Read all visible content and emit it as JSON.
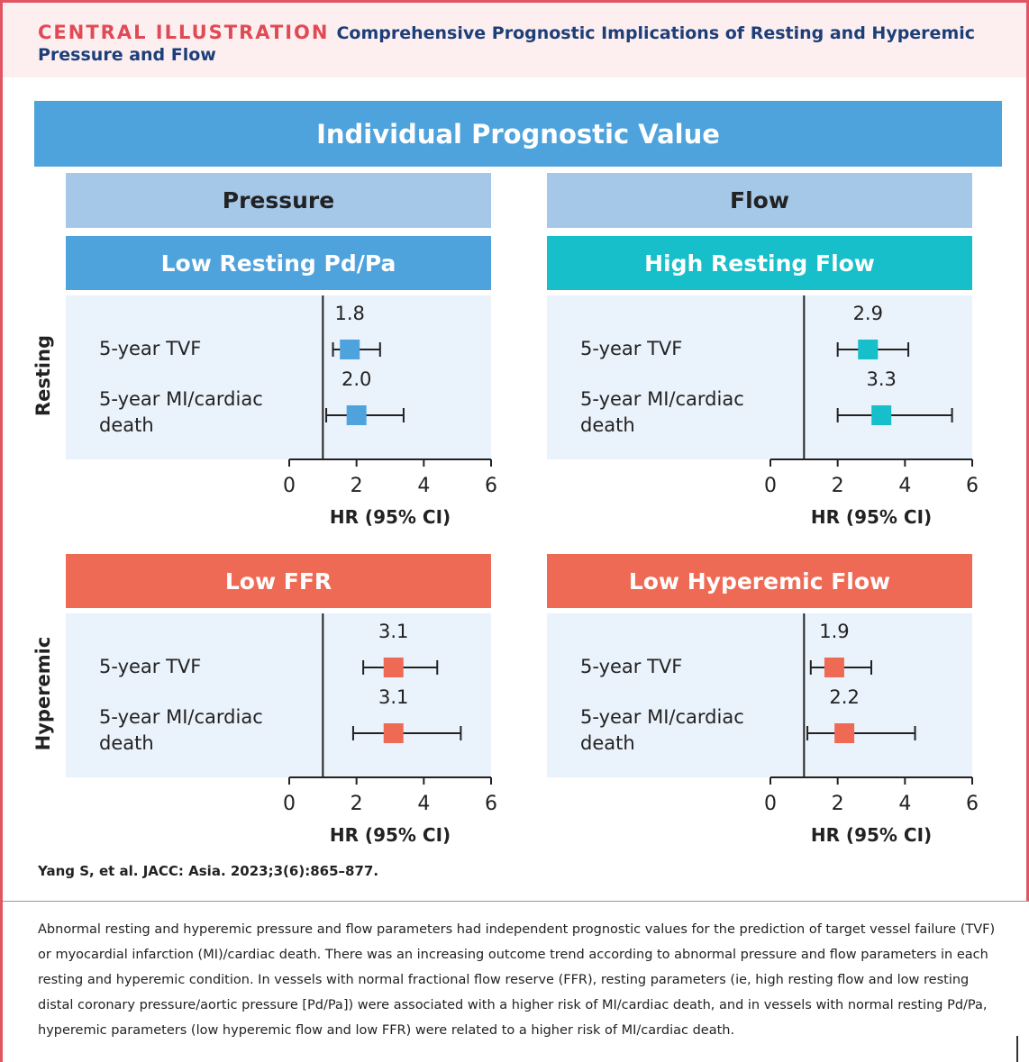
{
  "header": {
    "label": "CENTRAL ILLUSTRATION",
    "title": "Comprehensive Prognostic Implications of Resting and Hyperemic Pressure and Flow"
  },
  "banner": "Individual Prognostic Value",
  "column_headers": [
    "Pressure",
    "Flow"
  ],
  "row_labels": [
    "Resting",
    "Hyperemic"
  ],
  "chart_data": [
    {
      "type": "forest",
      "title": "Low Resting Pd/Pa",
      "color": "#4fa3dc",
      "categories": [
        "5-year TVF",
        "5-year MI/cardiac death"
      ],
      "values": [
        1.8,
        2
      ],
      "value_labels": [
        "1.8",
        "2.0"
      ],
      "ci_low": [
        1.3,
        1.1
      ],
      "ci_high": [
        2.7,
        3.4
      ],
      "reference": 1,
      "xlim": [
        0,
        6
      ],
      "xticks": [
        0,
        2,
        4,
        6
      ],
      "xlabel": "HR (95% CI)"
    },
    {
      "type": "forest",
      "title": "High Resting Flow",
      "color": "#16bfc9",
      "categories": [
        "5-year TVF",
        "5-year MI/cardiac death"
      ],
      "values": [
        2.9,
        3.3
      ],
      "value_labels": [
        "2.9",
        "3.3"
      ],
      "ci_low": [
        2.0,
        2.0
      ],
      "ci_high": [
        4.1,
        5.4
      ],
      "reference": 1,
      "xlim": [
        0,
        6
      ],
      "xticks": [
        0,
        2,
        4,
        6
      ],
      "xlabel": "HR (95% CI)"
    },
    {
      "type": "forest",
      "title": "Low FFR",
      "color": "#ef6a55",
      "categories": [
        "5-year TVF",
        "5-year MI/cardiac death"
      ],
      "values": [
        3.1,
        3.1
      ],
      "value_labels": [
        "3.1",
        "3.1"
      ],
      "ci_low": [
        2.2,
        1.9
      ],
      "ci_high": [
        4.4,
        5.1
      ],
      "reference": 1,
      "xlim": [
        0,
        6
      ],
      "xticks": [
        0,
        2,
        4,
        6
      ],
      "xlabel": "HR (95% CI)"
    },
    {
      "type": "forest",
      "title": "Low Hyperemic Flow",
      "color": "#ef6a55",
      "categories": [
        "5-year TVF",
        "5-year MI/cardiac death"
      ],
      "values": [
        1.9,
        2.2
      ],
      "value_labels": [
        "1.9",
        "2.2"
      ],
      "ci_low": [
        1.2,
        1.1
      ],
      "ci_high": [
        3.0,
        4.3
      ],
      "reference": 1,
      "xlim": [
        0,
        6
      ],
      "xticks": [
        0,
        2,
        4,
        6
      ],
      "xlabel": "HR (95% CI)"
    }
  ],
  "citation": "Yang S, et al. JACC: Asia. 2023;3(6):865–877.",
  "caption": "Abnormal resting and hyperemic pressure and flow parameters had independent prognostic values for the prediction of target vessel failure (TVF) or myocardial infarction (MI)/cardiac death. There was an increasing outcome trend according to abnormal pressure and flow parameters in each resting and hyperemic condition. In vessels with normal fractional flow reserve (FFR), resting parameters (ie, high resting flow and low resting distal coronary pressure/aortic pressure [Pd/Pa]) were associated with a higher risk of MI/cardiac death, and in vessels with normal resting Pd/Pa, hyperemic parameters (low hyperemic flow and low FFR) were related to a higher risk of MI/cardiac death."
}
